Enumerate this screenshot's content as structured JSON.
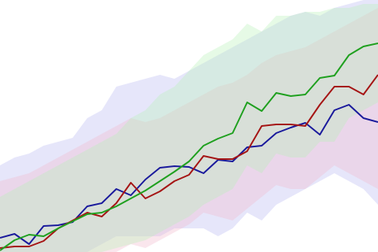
{
  "chart_data": {
    "type": "line",
    "x": [
      0,
      1,
      2,
      3,
      4,
      5,
      6,
      7,
      8,
      9,
      10,
      11,
      12,
      13,
      14,
      15,
      16,
      17,
      18,
      19,
      20,
      21,
      22,
      23,
      24,
      25,
      26
    ],
    "xlim": [
      0,
      26
    ],
    "ylim": [
      0,
      320
    ],
    "series": [
      {
        "color": "#1a1a9c",
        "band_color": "#b8b8f2",
        "values": [
          18,
          23,
          10,
          33,
          34,
          38,
          58,
          62,
          80,
          72,
          92,
          107,
          109,
          108,
          100,
          117,
          115,
          133,
          135,
          151,
          158,
          164,
          149,
          180,
          187,
          170,
          165
        ],
        "upper": [
          110,
          120,
          125,
          135,
          140,
          145,
          170,
          180,
          210,
          215,
          220,
          225,
          220,
          230,
          240,
          250,
          260,
          270,
          280,
          290,
          300,
          305,
          300,
          310,
          315,
          320,
          320
        ],
        "lower": [
          0,
          0,
          0,
          0,
          0,
          0,
          0,
          10,
          20,
          20,
          20,
          20,
          30,
          30,
          30,
          20,
          30,
          50,
          40,
          60,
          70,
          80,
          90,
          100,
          90,
          80,
          60
        ]
      },
      {
        "color": "#a51515",
        "band_color": "#f2b8cc",
        "values": [
          5,
          7,
          7,
          14,
          30,
          40,
          50,
          45,
          62,
          88,
          68,
          77,
          90,
          98,
          122,
          118,
          118,
          128,
          160,
          162,
          162,
          160,
          187,
          210,
          210,
          200,
          225
        ],
        "upper": [
          90,
          95,
          100,
          110,
          120,
          130,
          140,
          150,
          160,
          170,
          165,
          170,
          180,
          190,
          200,
          210,
          215,
          225,
          240,
          250,
          255,
          260,
          270,
          280,
          290,
          300,
          310
        ],
        "lower": [
          0,
          0,
          0,
          0,
          0,
          0,
          0,
          0,
          0,
          10,
          5,
          15,
          25,
          35,
          50,
          45,
          40,
          55,
          70,
          85,
          80,
          80,
          95,
          110,
          100,
          90,
          80
        ]
      },
      {
        "color": "#1fa01f",
        "band_color": "#b8f2b8",
        "values": [
          2,
          15,
          22,
          20,
          30,
          39,
          48,
          50,
          58,
          68,
          78,
          90,
          102,
          115,
          135,
          144,
          151,
          190,
          179,
          202,
          198,
          200,
          221,
          224,
          250,
          261,
          265
        ],
        "upper": [
          70,
          80,
          90,
          100,
          110,
          120,
          130,
          140,
          150,
          170,
          180,
          200,
          210,
          230,
          250,
          260,
          270,
          290,
          280,
          300,
          300,
          305,
          305,
          310,
          310,
          315,
          315
        ],
        "lower": [
          0,
          0,
          0,
          0,
          0,
          0,
          0,
          0,
          5,
          10,
          15,
          25,
          35,
          45,
          60,
          70,
          80,
          110,
          100,
          125,
          120,
          120,
          140,
          140,
          170,
          180,
          190
        ]
      }
    ]
  }
}
